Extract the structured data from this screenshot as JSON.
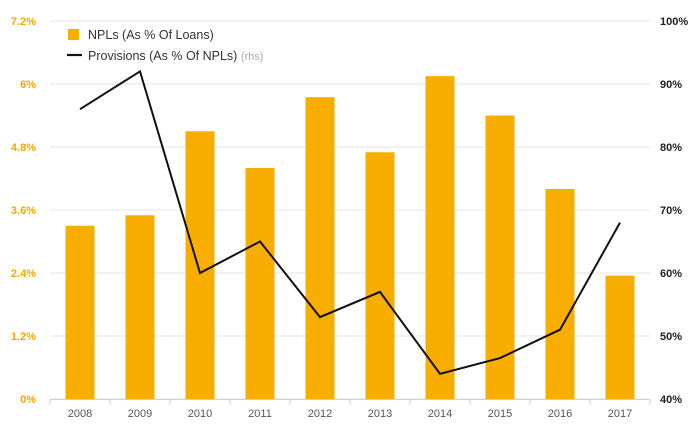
{
  "chart_data": {
    "type": "bar+line",
    "categories": [
      "2008",
      "2009",
      "2010",
      "2011",
      "2012",
      "2013",
      "2014",
      "2015",
      "2016",
      "2017"
    ],
    "series": [
      {
        "name": "NPLs (As % Of Loans)",
        "type": "bar",
        "axis": "left",
        "values": [
          3.3,
          3.5,
          5.1,
          4.4,
          5.75,
          4.7,
          6.15,
          5.4,
          4.0,
          2.35
        ]
      },
      {
        "name": "Provisions (As % Of NPLs)",
        "note": "(rhs)",
        "type": "line",
        "axis": "right",
        "values": [
          86,
          92,
          60,
          65,
          53,
          57,
          44,
          46.5,
          51,
          68
        ]
      }
    ],
    "y_left": {
      "min": 0,
      "max": 7.2,
      "ticks": [
        "0%",
        "1.2%",
        "2.4%",
        "3.6%",
        "4.8%",
        "6%",
        "7.2%"
      ]
    },
    "y_right": {
      "min": 40,
      "max": 100,
      "ticks": [
        "40%",
        "50%",
        "60%",
        "70%",
        "80%",
        "90%",
        "100%"
      ]
    },
    "legend_position": "top-left",
    "colors": {
      "bar": "#f7ae00",
      "line": "#111111",
      "grid": "#e6e6e6"
    }
  }
}
